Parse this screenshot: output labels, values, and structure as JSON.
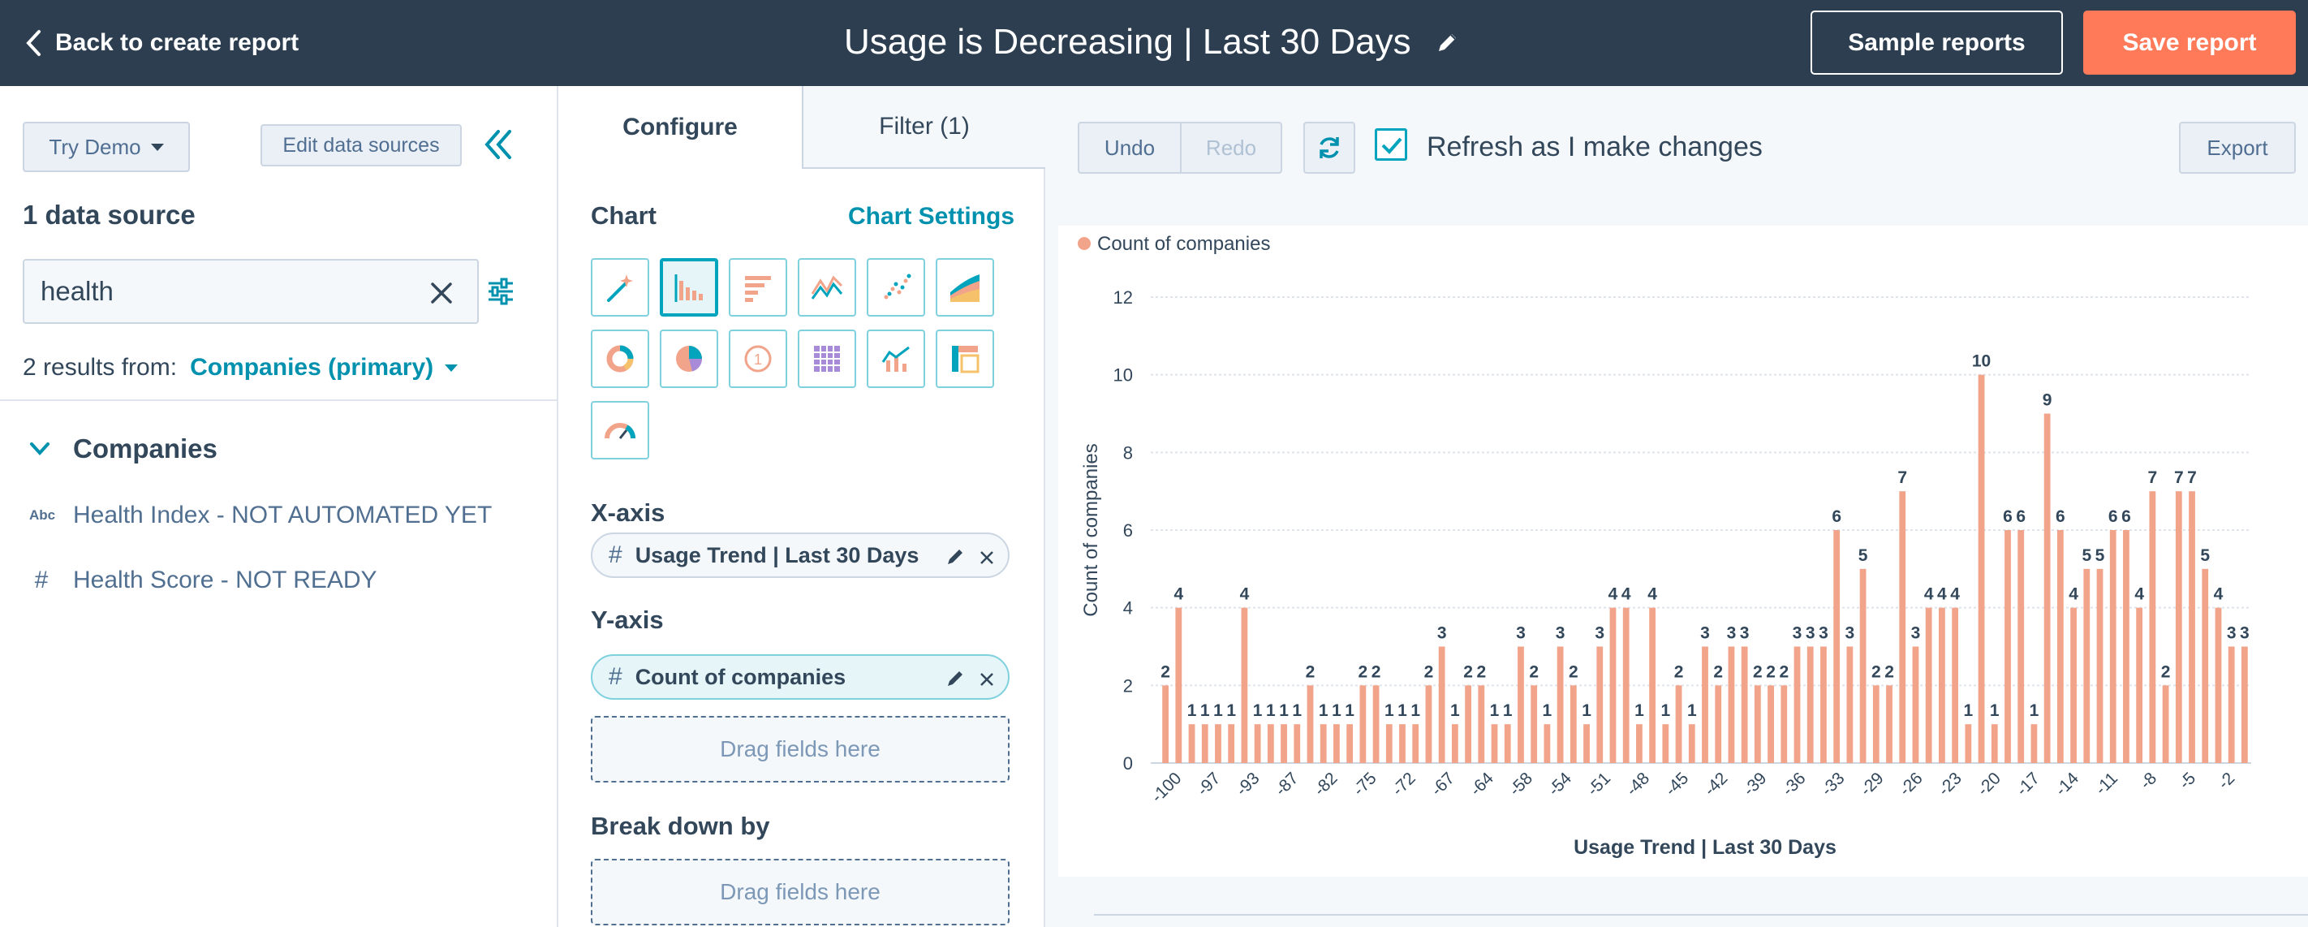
{
  "topbar": {
    "back_label": "Back to create report",
    "title": "Usage is Decreasing | Last 30 Days",
    "sample_reports_label": "Sample reports",
    "save_report_label": "Save report"
  },
  "left": {
    "try_demo_label": "Try Demo",
    "edit_sources_label": "Edit data sources",
    "data_source_count": "1 data source",
    "search_value": "health",
    "results_prefix": "2 results from:",
    "results_source": "Companies (primary)",
    "group_label": "Companies",
    "fields": [
      {
        "type": "Abc",
        "label": "Health Index - NOT AUTOMATED YET"
      },
      {
        "type": "#",
        "label": "Health Score - NOT READY"
      }
    ]
  },
  "mid": {
    "tab_configure": "Configure",
    "tab_filter": "Filter (1)",
    "chart_label": "Chart",
    "chart_settings_label": "Chart Settings",
    "chart_types": [
      "magic-wand-icon",
      "vertical-bar-icon",
      "horizontal-bar-icon",
      "line-icon",
      "scatter-icon",
      "area-icon",
      "donut-icon",
      "pie-icon",
      "summary-icon",
      "table-icon",
      "combo-icon",
      "pivot-icon",
      "gauge-icon"
    ],
    "xaxis_label": "X-axis",
    "xaxis_field": "Usage Trend | Last 30 Days",
    "yaxis_label": "Y-axis",
    "yaxis_field": "Count of companies",
    "drag_label": "Drag fields here",
    "breakdown_label": "Break down by"
  },
  "right": {
    "undo_label": "Undo",
    "redo_label": "Redo",
    "refresh_label": "Refresh as I make changes",
    "export_label": "Export"
  },
  "colors": {
    "bar": "#f2a48a",
    "accent": "#0091ae",
    "save": "#ff7a59",
    "topbar": "#2d3e50"
  },
  "chart_data": {
    "type": "bar",
    "legend": "Count of companies",
    "legend_position": "top-left",
    "xlabel": "Usage Trend | Last 30 Days",
    "ylabel": "Count of companies",
    "ylim": [
      0,
      12
    ],
    "yticks": [
      0,
      2,
      4,
      6,
      8,
      10,
      12
    ],
    "grid": true,
    "tick_labels": [
      "-100",
      "-97",
      "-93",
      "-87",
      "-82",
      "-75",
      "-72",
      "-67",
      "-64",
      "-58",
      "-54",
      "-51",
      "-48",
      "-45",
      "-42",
      "-39",
      "-36",
      "-33",
      "-29",
      "-26",
      "-23",
      "-20",
      "-17",
      "-14",
      "-11",
      "-8",
      "-5",
      "-2"
    ],
    "values": [
      2,
      4,
      1,
      1,
      1,
      1,
      4,
      1,
      1,
      1,
      1,
      2,
      1,
      1,
      1,
      2,
      2,
      1,
      1,
      1,
      2,
      3,
      1,
      2,
      2,
      1,
      1,
      3,
      2,
      1,
      3,
      2,
      1,
      3,
      4,
      4,
      1,
      4,
      1,
      2,
      1,
      3,
      2,
      3,
      3,
      2,
      2,
      2,
      3,
      3,
      3,
      6,
      3,
      5,
      2,
      2,
      7,
      3,
      4,
      4,
      4,
      1,
      10,
      1,
      6,
      6,
      1,
      9,
      6,
      4,
      5,
      5,
      6,
      6,
      4,
      7,
      2,
      7,
      7,
      5,
      4,
      3,
      3
    ]
  }
}
